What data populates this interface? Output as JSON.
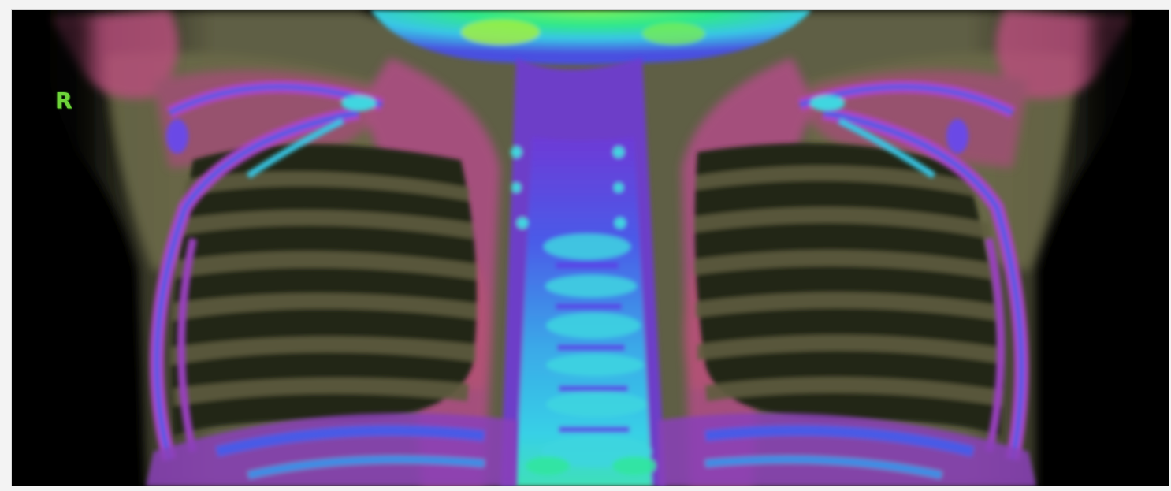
{
  "image": {
    "kind": "pseudo-color coronal chest CT scan",
    "orientation_marker": "R"
  },
  "palette": {
    "background": "#000000",
    "soft_tissue": "#6b6a4a",
    "lung": "#1a2016",
    "muscle_pink": "#b5507a",
    "bone_magenta": "#b043c8",
    "bone_blue": "#4a5ae6",
    "bone_cyan": "#3fd6e0",
    "dense_green": "#2ff07a",
    "marker_green": "#6fd43a"
  }
}
